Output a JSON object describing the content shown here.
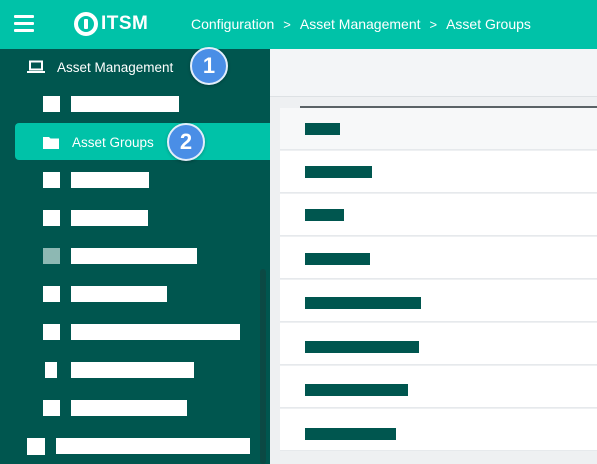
{
  "topbar": {
    "menu_icon": "hamburger-menu-icon",
    "logo_text": "ITSM",
    "breadcrumb": [
      "Configuration",
      "Asset Management",
      "Asset Groups"
    ],
    "separator": ">"
  },
  "sidebar": {
    "section": {
      "label": "Asset Management",
      "icon": "laptop-icon"
    },
    "active_item": {
      "label": "Asset Groups",
      "icon": "folder-icon"
    },
    "annotations": [
      "1",
      "2"
    ]
  },
  "colors": {
    "brand_teal": "#00c2a8",
    "sidebar_bg": "#00564f",
    "badge_blue": "#4a8ee6"
  }
}
